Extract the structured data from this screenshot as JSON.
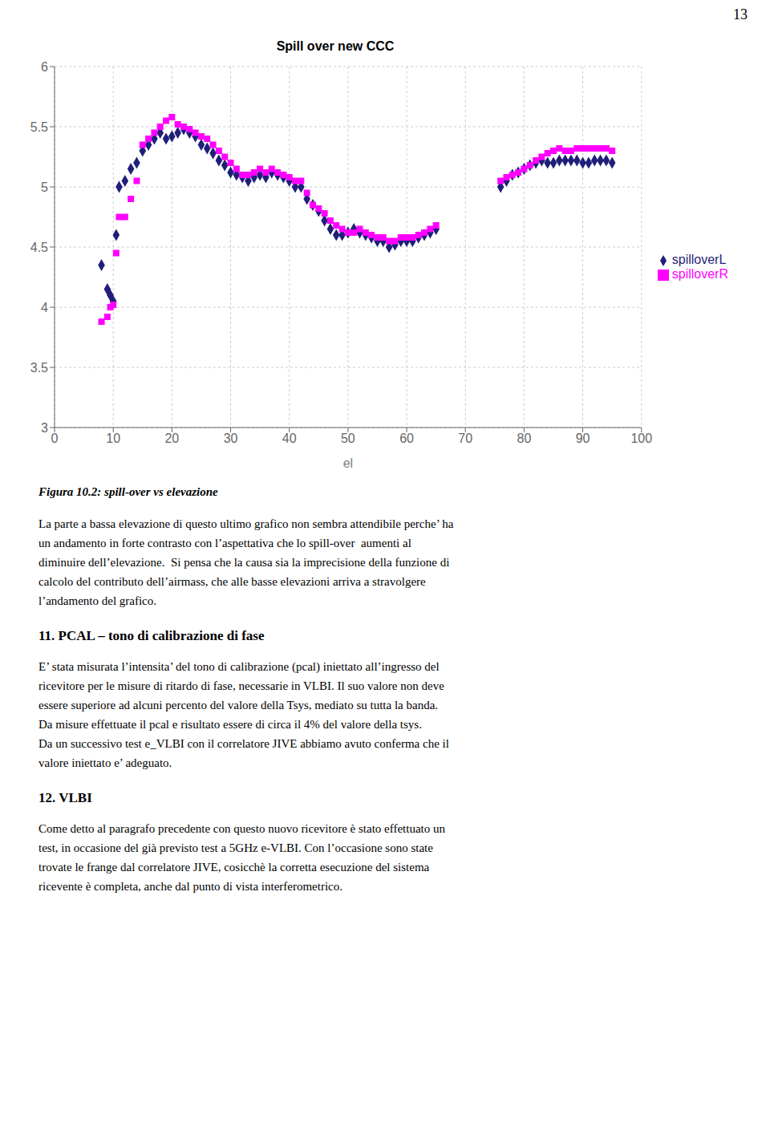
{
  "chart_data": {
    "type": "scatter",
    "title": "Spill over new CCC",
    "xlabel": "el",
    "xlim": [
      0,
      100
    ],
    "ylim": [
      3,
      6
    ],
    "xticks": [
      0,
      10,
      20,
      30,
      40,
      50,
      60,
      70,
      80,
      90,
      100
    ],
    "yticks": [
      3,
      3.5,
      4,
      4.5,
      5,
      5.5,
      6
    ],
    "grid": true,
    "legend": "right",
    "series": [
      {
        "name": "spilloverL",
        "color": "#1F1F7A",
        "marker": "diamond",
        "x": [
          8,
          9,
          9.5,
          10,
          10.5,
          11,
          12,
          13,
          14,
          15,
          16,
          17,
          18,
          19,
          20,
          21,
          22,
          23,
          24,
          25,
          26,
          27,
          28,
          29,
          30,
          31,
          32,
          33,
          34,
          35,
          36,
          37,
          38,
          39,
          40,
          41,
          42,
          43,
          44,
          45,
          46,
          47,
          48,
          49,
          50,
          51,
          52,
          53,
          54,
          55,
          56,
          57,
          58,
          59,
          60,
          61,
          62,
          63,
          64,
          65,
          76,
          77,
          78,
          79,
          80,
          81,
          82,
          83,
          84,
          85,
          86,
          87,
          88,
          89,
          90,
          91,
          92,
          93,
          94,
          95
        ],
        "values": [
          4.35,
          4.15,
          4.1,
          4.05,
          4.6,
          5.0,
          5.05,
          5.15,
          5.2,
          5.3,
          5.35,
          5.4,
          5.45,
          5.4,
          5.42,
          5.45,
          5.48,
          5.45,
          5.42,
          5.35,
          5.32,
          5.28,
          5.22,
          5.18,
          5.12,
          5.1,
          5.08,
          5.05,
          5.08,
          5.1,
          5.08,
          5.12,
          5.1,
          5.08,
          5.05,
          5.0,
          5.0,
          4.9,
          4.85,
          4.8,
          4.72,
          4.65,
          4.6,
          4.6,
          4.62,
          4.65,
          4.62,
          4.6,
          4.58,
          4.55,
          4.55,
          4.5,
          4.52,
          4.55,
          4.55,
          4.55,
          4.58,
          4.6,
          4.62,
          4.65,
          5.0,
          5.05,
          5.1,
          5.12,
          5.15,
          5.18,
          5.2,
          5.22,
          5.2,
          5.2,
          5.22,
          5.22,
          5.22,
          5.22,
          5.2,
          5.2,
          5.22,
          5.22,
          5.22,
          5.2
        ]
      },
      {
        "name": "spilloverR",
        "color": "#FF00FF",
        "marker": "square",
        "x": [
          8,
          9,
          9.5,
          10,
          10.5,
          11,
          12,
          13,
          14,
          15,
          16,
          17,
          18,
          19,
          20,
          21,
          22,
          23,
          24,
          25,
          26,
          27,
          28,
          29,
          30,
          31,
          32,
          33,
          34,
          35,
          36,
          37,
          38,
          39,
          40,
          41,
          42,
          43,
          44,
          45,
          46,
          47,
          48,
          49,
          50,
          51,
          52,
          53,
          54,
          55,
          56,
          57,
          58,
          59,
          60,
          61,
          62,
          63,
          64,
          65,
          76,
          77,
          78,
          79,
          80,
          81,
          82,
          83,
          84,
          85,
          86,
          87,
          88,
          89,
          90,
          91,
          92,
          93,
          94,
          95
        ],
        "values": [
          3.88,
          3.92,
          4.0,
          4.02,
          4.45,
          4.75,
          4.75,
          4.9,
          5.05,
          5.35,
          5.4,
          5.45,
          5.5,
          5.55,
          5.58,
          5.52,
          5.5,
          5.48,
          5.45,
          5.42,
          5.4,
          5.35,
          5.3,
          5.25,
          5.2,
          5.15,
          5.1,
          5.1,
          5.12,
          5.15,
          5.12,
          5.15,
          5.12,
          5.1,
          5.08,
          5.05,
          5.05,
          4.95,
          4.85,
          4.82,
          4.78,
          4.72,
          4.68,
          4.65,
          4.62,
          4.62,
          4.65,
          4.62,
          4.6,
          4.58,
          4.58,
          4.55,
          4.55,
          4.58,
          4.58,
          4.58,
          4.6,
          4.62,
          4.65,
          4.68,
          5.05,
          5.08,
          5.1,
          5.12,
          5.15,
          5.18,
          5.22,
          5.25,
          5.28,
          5.3,
          5.32,
          5.3,
          5.3,
          5.32,
          5.32,
          5.32,
          5.32,
          5.32,
          5.32,
          5.3
        ]
      }
    ]
  },
  "page": {
    "page_number": "13",
    "fig_caption": "Figura 10.2: spill-over vs elevazione",
    "paragraphs": [
      "La parte a bassa elevazione di questo ultimo grafico non sembra attendibile perche’ ha",
      "un andamento in forte contrasto con l’aspettativa che lo spill-over  aumenti al",
      "diminuire dell’elevazione.  Si pensa che la causa sia la imprecisione della funzione di",
      "calcolo del contributo dell’airmass, che alle basse elevazioni arriva a stravolgere",
      "l’andamento del grafico."
    ],
    "sections": [
      {
        "title": "11. PCAL – tono di calibrazione di fase",
        "lines": [
          "E’ stata misurata l’intensita’ del tono di calibrazione (pcal) iniettato all’ingresso del",
          "ricevitore per le misure di ritardo di fase, necessarie in VLBI. Il suo valore non deve",
          "essere superiore ad alcuni percento del valore della Tsys, mediato su tutta la banda.",
          "Da misure effettuate il pcal e risultato essere di circa il 4% del valore della tsys.",
          "Da un successivo test e_VLBI con il correlatore JIVE abbiamo avuto conferma che il",
          "valore iniettato e’ adeguato."
        ]
      },
      {
        "title": "12. VLBI",
        "lines": [
          "Come detto al paragrafo precedente con questo nuovo ricevitore è stato effettuato un",
          "test, in occasione del già previsto test a 5GHz e-VLBI. Con l’occasione sono state",
          "trovate le frange dal correlatore JIVE, cosicchè la corretta esecuzione del sistema",
          "ricevente è completa, anche dal punto di vista interferometrico."
        ]
      }
    ]
  }
}
